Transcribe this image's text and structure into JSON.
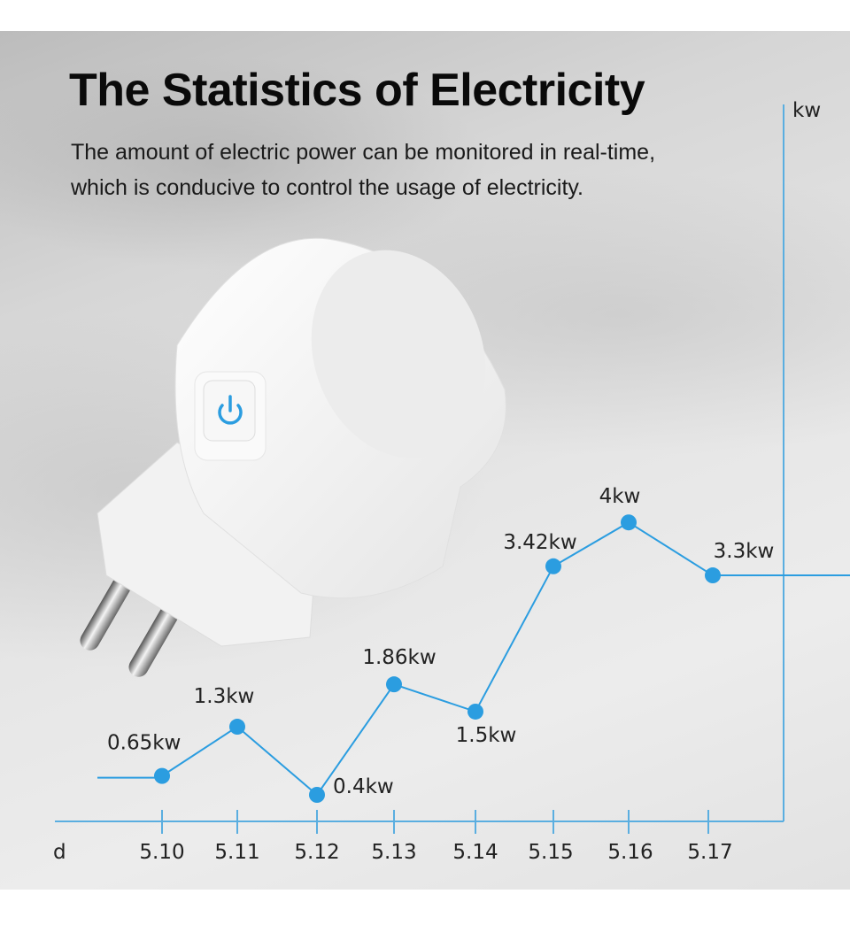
{
  "header": {
    "title": "The Statistics of Electricity",
    "subtitle_line1": "The amount of electric power can be monitored in real-time,",
    "subtitle_line2": "which is conducive to control the usage of electricity."
  },
  "colors": {
    "accent": "#2b9de0",
    "axis": "#5aaee0",
    "text": "#222222"
  },
  "product": {
    "icon": "power-button-icon"
  },
  "chart_data": {
    "type": "line",
    "xlabel": "d",
    "ylabel": "kw",
    "categories": [
      "5.10",
      "5.11",
      "5.12",
      "5.13",
      "5.14",
      "5.15",
      "5.16",
      "5.17"
    ],
    "values": [
      0.65,
      1.3,
      0.4,
      1.86,
      1.5,
      3.42,
      4,
      3.3
    ],
    "data_labels": [
      "0.65kw",
      "1.3kw",
      "0.4kw",
      "1.86kw",
      "1.5kw",
      "3.42kw",
      "4kw",
      "3.3kw"
    ],
    "grid": false
  }
}
